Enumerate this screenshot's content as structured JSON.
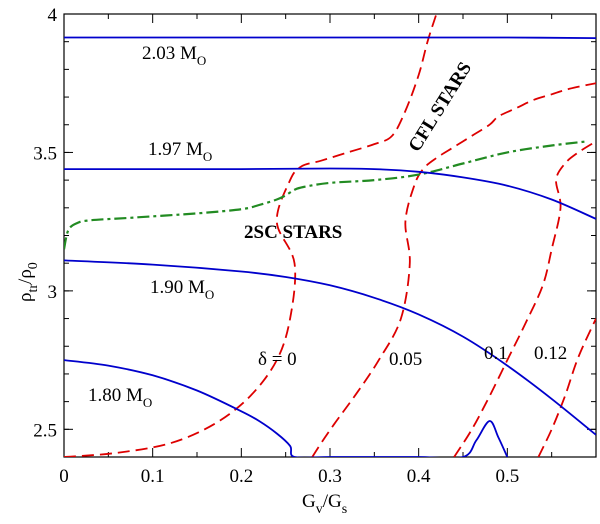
{
  "chart_data": {
    "type": "line",
    "title": "",
    "xlabel": "G",
    "xlabel_sub": "v",
    "xlabel_sep": "/G",
    "xlabel_sub2": "s",
    "ylabel": "ρ",
    "ylabel_sub": "tr",
    "ylabel_sep": "/ρ",
    "ylabel_sub2": "0",
    "xlim": [
      0,
      0.6
    ],
    "ylim": [
      2.4,
      4.0
    ],
    "xticks": [
      0,
      0.1,
      0.2,
      0.3,
      0.4,
      0.5
    ],
    "xtick_labels": [
      "0",
      "0.1",
      "0.2",
      "0.3",
      "0.4",
      "0.5"
    ],
    "yticks": [
      2.5,
      3.0,
      3.5,
      4.0
    ],
    "ytick_labels": [
      "2.5",
      "3",
      "3.5",
      "4"
    ],
    "colors": {
      "mass": "#0000cc",
      "delta": "#dd0000",
      "boundary": "#228b22",
      "axis": "#000000"
    },
    "mass_curves": [
      {
        "name": "2.03 MO",
        "label_text": "2.03 M",
        "label_sub": "O",
        "x": [
          0,
          0.1,
          0.2,
          0.3,
          0.4,
          0.5,
          0.6
        ],
        "y": [
          3.915,
          3.915,
          3.915,
          3.915,
          3.915,
          3.915,
          3.913
        ]
      },
      {
        "name": "1.97 MO",
        "label_text": "1.97 M",
        "label_sub": "O",
        "x": [
          0,
          0.1,
          0.2,
          0.3,
          0.35,
          0.4,
          0.45,
          0.5,
          0.55,
          0.6
        ],
        "y": [
          3.44,
          3.44,
          3.44,
          3.442,
          3.44,
          3.43,
          3.41,
          3.38,
          3.33,
          3.26
        ]
      },
      {
        "name": "1.90 MO",
        "label_text": "1.90 M",
        "label_sub": "O",
        "x": [
          0,
          0.1,
          0.2,
          0.25,
          0.3,
          0.35,
          0.4,
          0.45,
          0.5,
          0.55,
          0.6
        ],
        "y": [
          3.11,
          3.095,
          3.07,
          3.05,
          3.02,
          2.975,
          2.915,
          2.835,
          2.73,
          2.61,
          2.48
        ]
      },
      {
        "name": "1.80 MO",
        "label_text": "1.80 M",
        "label_sub": "O",
        "x": [
          0,
          0.05,
          0.1,
          0.15,
          0.2,
          0.22,
          0.24,
          0.255,
          0.26,
          0.3,
          0.35,
          0.4,
          0.45,
          0.465,
          0.48,
          0.49,
          0.5
        ],
        "y": [
          2.75,
          2.73,
          2.695,
          2.64,
          2.565,
          2.53,
          2.485,
          2.44,
          2.4,
          2.4,
          2.4,
          2.4,
          2.4,
          2.46,
          2.53,
          2.47,
          2.4
        ]
      }
    ],
    "delta_curves": [
      {
        "name": "δ = 0",
        "x": [
          0,
          0.06,
          0.12,
          0.17,
          0.21,
          0.24,
          0.255,
          0.26,
          0.24,
          0.255,
          0.268,
          0.29,
          0.32,
          0.35,
          0.37,
          0.385,
          0.4,
          0.41,
          0.42
        ],
        "y": [
          2.4,
          2.415,
          2.45,
          2.52,
          2.62,
          2.75,
          2.9,
          3.1,
          3.25,
          3.4,
          3.45,
          3.47,
          3.5,
          3.53,
          3.56,
          3.65,
          3.78,
          3.9,
          4.0
        ]
      },
      {
        "name": "0.05",
        "x": [
          0.28,
          0.29,
          0.305,
          0.33,
          0.355,
          0.38,
          0.39,
          0.385,
          0.395,
          0.405,
          0.42,
          0.44,
          0.46,
          0.48,
          0.49,
          0.51,
          0.53,
          0.55,
          0.57,
          0.6
        ],
        "y": [
          2.4,
          2.45,
          2.52,
          2.63,
          2.75,
          2.9,
          3.1,
          3.25,
          3.38,
          3.44,
          3.48,
          3.52,
          3.56,
          3.6,
          3.63,
          3.66,
          3.69,
          3.71,
          3.73,
          3.75
        ]
      },
      {
        "name": "0.1",
        "x": [
          0.44,
          0.46,
          0.48,
          0.5,
          0.52,
          0.54,
          0.55,
          0.56,
          0.555,
          0.565,
          0.58,
          0.6
        ],
        "y": [
          2.4,
          2.5,
          2.62,
          2.75,
          2.88,
          3.02,
          3.15,
          3.3,
          3.4,
          3.46,
          3.5,
          3.54
        ]
      },
      {
        "name": "0.12",
        "x": [
          0.535,
          0.55,
          0.565,
          0.58,
          0.6
        ],
        "y": [
          2.4,
          2.5,
          2.62,
          2.76,
          2.9
        ]
      }
    ],
    "phase_boundary": {
      "name": "2SC-CFL boundary",
      "x": [
        0,
        0.005,
        0.015,
        0.03,
        0.08,
        0.15,
        0.2,
        0.22,
        0.24,
        0.25,
        0.26,
        0.27,
        0.3,
        0.35,
        0.4,
        0.45,
        0.5,
        0.55,
        0.59
      ],
      "y": [
        3.15,
        3.22,
        3.245,
        3.255,
        3.265,
        3.28,
        3.295,
        3.31,
        3.33,
        3.345,
        3.365,
        3.375,
        3.39,
        3.4,
        3.42,
        3.46,
        3.5,
        3.525,
        3.54
      ]
    },
    "annotations": {
      "delta0": "δ = 0",
      "d005": "0.05",
      "d01": "0.1",
      "d012": "0.12",
      "sc2": "2SC STARS",
      "cfl": "CFL STARS"
    }
  }
}
